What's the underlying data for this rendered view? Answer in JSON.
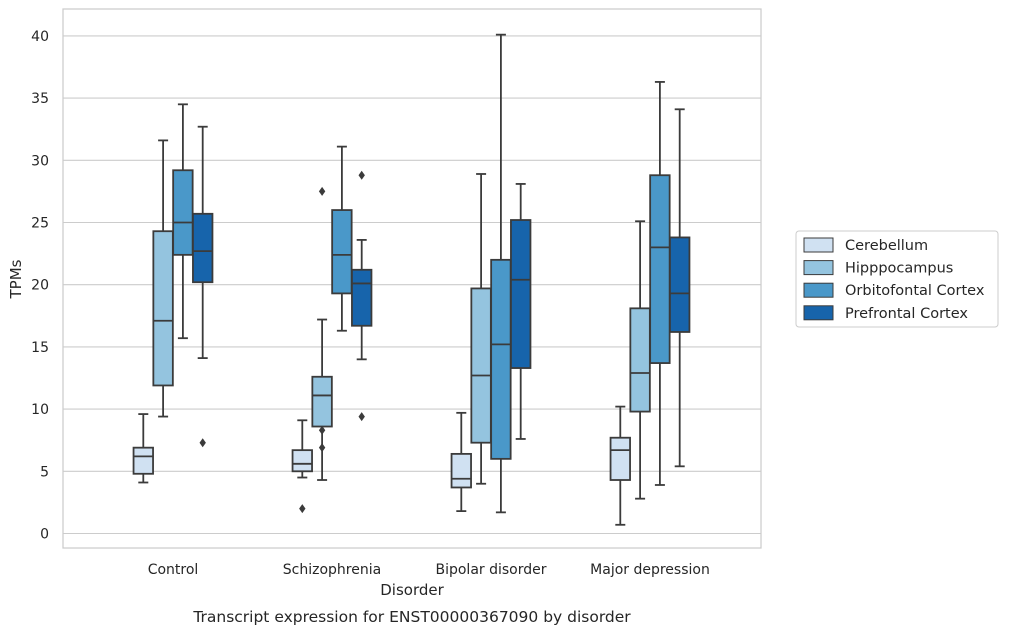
{
  "chart_data": {
    "type": "boxplot",
    "caption": "Transcript expression for ENST00000367090 by disorder",
    "xlabel": "Disorder",
    "ylabel": "TPMs",
    "ylim": [
      -1.2,
      42.2
    ],
    "yticks": [
      0,
      5,
      10,
      15,
      20,
      25,
      30,
      35,
      40
    ],
    "grid": "horizontal",
    "legend_position": "right",
    "categories": [
      "Control",
      "Schizophrenia",
      "Bipolar disorder",
      "Major depression"
    ],
    "series": [
      {
        "name": "Cerebellum",
        "color": "#d0e1f2",
        "boxes": [
          {
            "whislo": 4.1,
            "q1": 4.8,
            "med": 6.2,
            "q3": 6.9,
            "whishi": 9.6,
            "fliers": []
          },
          {
            "whislo": 4.5,
            "q1": 5.0,
            "med": 5.6,
            "q3": 6.7,
            "whishi": 9.1,
            "fliers": [
              2.0
            ]
          },
          {
            "whislo": 1.8,
            "q1": 3.7,
            "med": 4.4,
            "q3": 6.4,
            "whishi": 9.7,
            "fliers": []
          },
          {
            "whislo": 0.7,
            "q1": 4.3,
            "med": 6.7,
            "q3": 7.7,
            "whishi": 10.2,
            "fliers": []
          }
        ]
      },
      {
        "name": "Hipppocampus",
        "color": "#94c4df",
        "boxes": [
          {
            "whislo": 9.4,
            "q1": 11.9,
            "med": 17.1,
            "q3": 24.3,
            "whishi": 31.6,
            "fliers": []
          },
          {
            "whislo": 4.3,
            "q1": 8.6,
            "med": 11.1,
            "q3": 12.6,
            "whishi": 17.2,
            "fliers": [
              27.5,
              8.3,
              6.9
            ]
          },
          {
            "whislo": 4.0,
            "q1": 7.3,
            "med": 12.7,
            "q3": 19.7,
            "whishi": 28.9,
            "fliers": []
          },
          {
            "whislo": 2.8,
            "q1": 9.8,
            "med": 12.9,
            "q3": 18.1,
            "whishi": 25.1,
            "fliers": []
          }
        ]
      },
      {
        "name": "Orbitofontal Cortex",
        "color": "#4a98c9",
        "boxes": [
          {
            "whislo": 15.7,
            "q1": 22.4,
            "med": 25.0,
            "q3": 29.2,
            "whishi": 34.5,
            "fliers": []
          },
          {
            "whislo": 16.3,
            "q1": 19.3,
            "med": 22.4,
            "q3": 26.0,
            "whishi": 31.1,
            "fliers": []
          },
          {
            "whislo": 1.7,
            "q1": 6.0,
            "med": 15.2,
            "q3": 22.0,
            "whishi": 40.1,
            "fliers": []
          },
          {
            "whislo": 3.9,
            "q1": 13.7,
            "med": 23.0,
            "q3": 28.8,
            "whishi": 36.3,
            "fliers": []
          }
        ]
      },
      {
        "name": "Prefrontal Cortex",
        "color": "#1764ab",
        "boxes": [
          {
            "whislo": 14.1,
            "q1": 20.2,
            "med": 22.7,
            "q3": 25.7,
            "whishi": 32.7,
            "fliers": [
              7.3
            ]
          },
          {
            "whislo": 14.0,
            "q1": 16.7,
            "med": 20.1,
            "q3": 21.2,
            "whishi": 23.6,
            "fliers": [
              28.8,
              9.4
            ]
          },
          {
            "whislo": 7.6,
            "q1": 13.3,
            "med": 20.4,
            "q3": 25.2,
            "whishi": 28.1,
            "fliers": []
          },
          {
            "whislo": 5.4,
            "q1": 16.2,
            "med": 19.3,
            "q3": 23.8,
            "whishi": 34.1,
            "fliers": []
          }
        ]
      }
    ]
  }
}
